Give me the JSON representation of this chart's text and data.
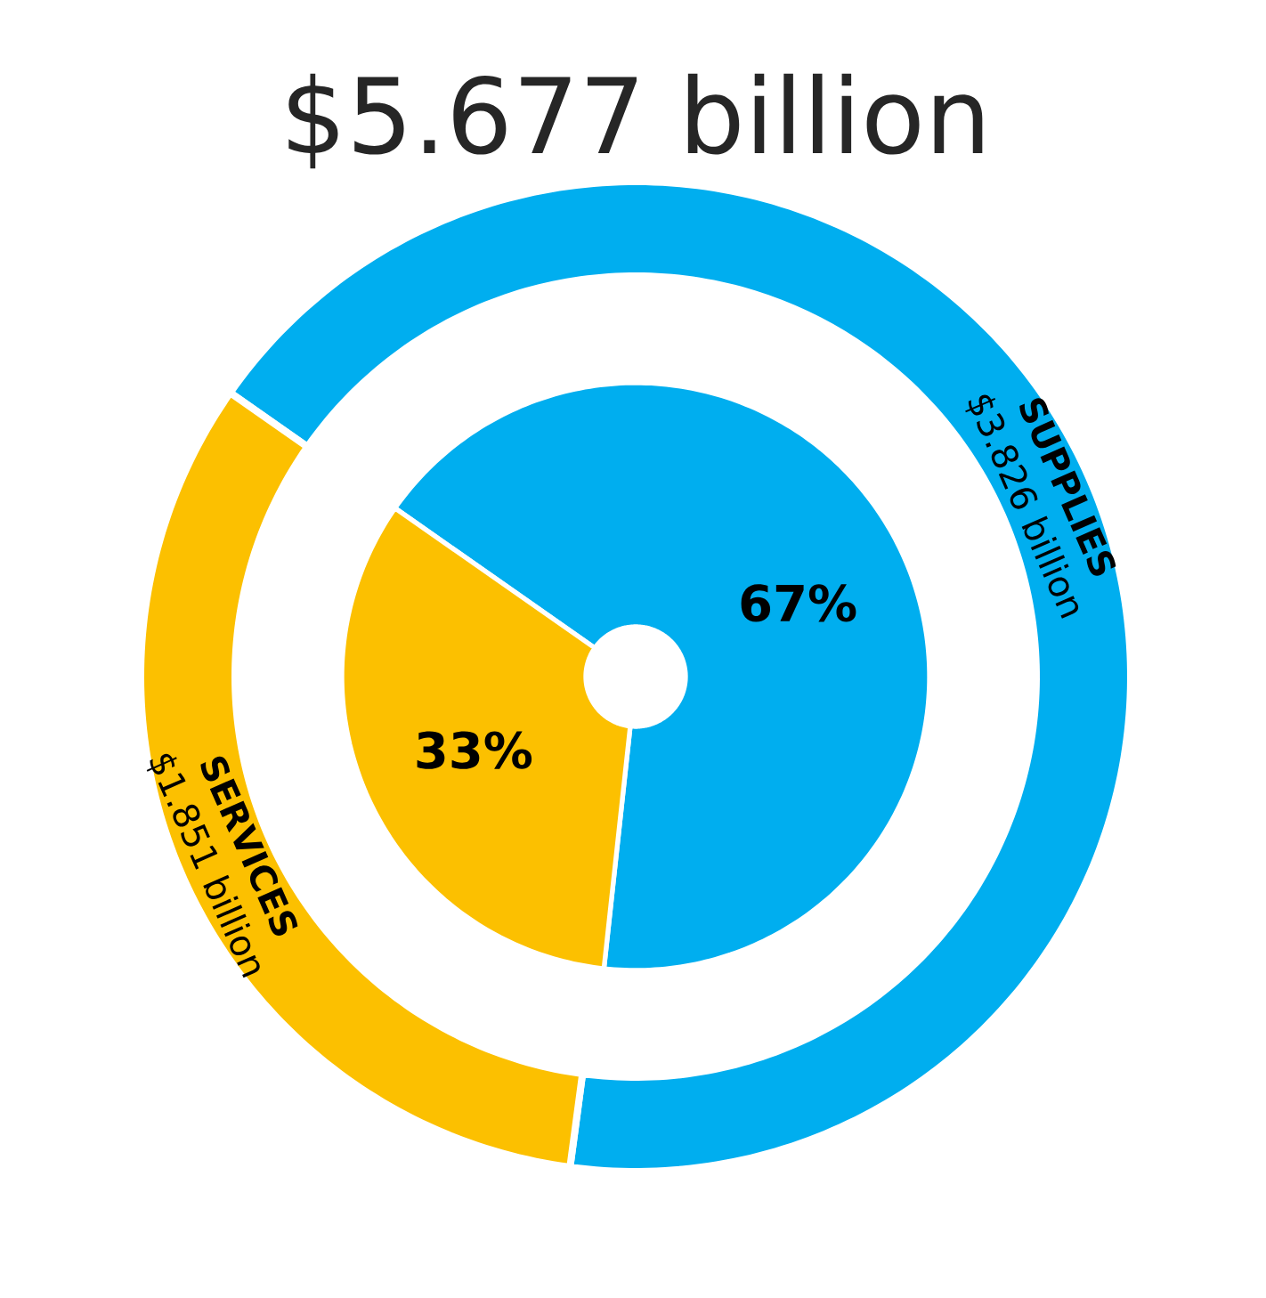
{
  "chart_data": {
    "type": "donut",
    "title": "$5.677 billion",
    "categories": [
      "SUPPLIES",
      "SERVICES"
    ],
    "series": [
      {
        "values": [
          3.826,
          1.851
        ],
        "colors": [
          "#00aeef",
          "#fcc000"
        ],
        "value_labels": [
          "$3.826 billion",
          "$1.851 billion"
        ]
      },
      {
        "values": [
          67,
          33
        ],
        "colors": [
          "#00aeef",
          "#fcc000"
        ],
        "value_labels": [
          "67%",
          "33%"
        ]
      }
    ]
  }
}
